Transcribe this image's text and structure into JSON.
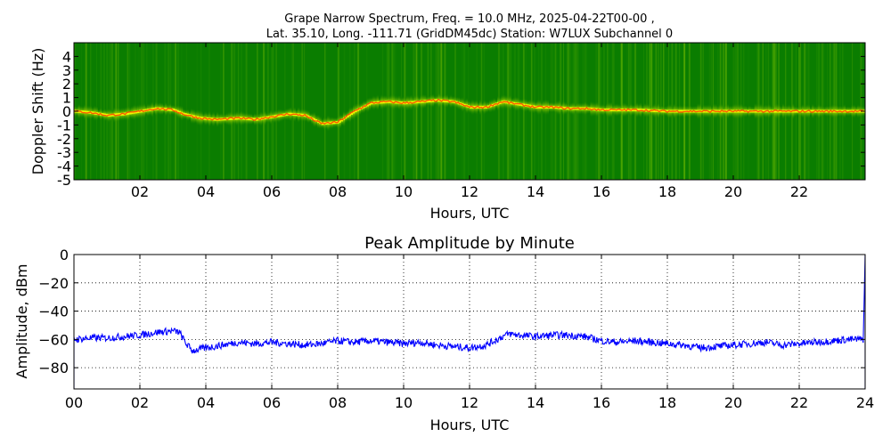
{
  "chart_data": [
    {
      "type": "heatmap",
      "title_line1": "Grape Narrow Spectrum, Freq. = 10.0 MHz, 2025-04-22T00-00 ,",
      "title_line2": "Lat.  35.10, Long. -111.71 (GridDM45dc) Station: W7LUX Subchannel 0",
      "xlabel": "Hours, UTC",
      "ylabel": "Doppler Shift (Hz)",
      "xlim": [
        0,
        24
      ],
      "ylim": [
        -5,
        5
      ],
      "x_ticks": [
        {
          "value": 2,
          "label": "02"
        },
        {
          "value": 4,
          "label": "04"
        },
        {
          "value": 6,
          "label": "06"
        },
        {
          "value": 8,
          "label": "08"
        },
        {
          "value": 10,
          "label": "10"
        },
        {
          "value": 12,
          "label": "12"
        },
        {
          "value": 14,
          "label": "14"
        },
        {
          "value": 16,
          "label": "16"
        },
        {
          "value": 18,
          "label": "18"
        },
        {
          "value": 20,
          "label": "20"
        },
        {
          "value": 22,
          "label": "22"
        }
      ],
      "y_ticks": [
        {
          "value": 4,
          "label": "4"
        },
        {
          "value": 3,
          "label": "3"
        },
        {
          "value": 2,
          "label": "2"
        },
        {
          "value": 1,
          "label": "1"
        },
        {
          "value": 0,
          "label": "0"
        },
        {
          "value": -1,
          "label": "-1"
        },
        {
          "value": -2,
          "label": "-2"
        },
        {
          "value": -3,
          "label": "-3"
        },
        {
          "value": -4,
          "label": "-4"
        },
        {
          "value": -5,
          "label": "-5"
        }
      ],
      "colors": {
        "background": "#0a7d00",
        "mid": "#8fcc00",
        "high": "#ffff00",
        "peak": "#ff2a00"
      },
      "doppler_trace": {
        "hours": [
          0,
          0.5,
          1,
          1.5,
          2,
          2.5,
          3,
          3.3,
          3.8,
          4.3,
          5,
          5.5,
          6,
          6.5,
          7,
          7.5,
          8,
          8.5,
          9,
          9.5,
          10,
          10.5,
          11,
          11.5,
          12,
          12.5,
          13,
          13.5,
          14,
          14.5,
          15,
          15.5,
          16,
          17,
          18,
          19,
          20,
          21,
          22,
          23,
          23.8
        ],
        "hz": [
          0,
          -0.1,
          -0.3,
          -0.2,
          0,
          0.2,
          0.1,
          -0.2,
          -0.5,
          -0.6,
          -0.5,
          -0.6,
          -0.4,
          -0.2,
          -0.3,
          -0.9,
          -0.8,
          0,
          0.6,
          0.7,
          0.6,
          0.7,
          0.8,
          0.7,
          0.3,
          0.3,
          0.7,
          0.5,
          0.3,
          0.3,
          0.2,
          0.2,
          0.1,
          0.1,
          0,
          0,
          0,
          0,
          0,
          0,
          0
        ]
      }
    },
    {
      "type": "line",
      "title": "Peak Amplitude by Minute",
      "xlabel": "Hours, UTC",
      "ylabel": "Amplitude, dBm",
      "xlim": [
        0,
        24
      ],
      "ylim": [
        -95,
        0
      ],
      "grid": true,
      "x_ticks": [
        {
          "value": 0,
          "label": "00"
        },
        {
          "value": 2,
          "label": "02"
        },
        {
          "value": 4,
          "label": "04"
        },
        {
          "value": 6,
          "label": "06"
        },
        {
          "value": 8,
          "label": "08"
        },
        {
          "value": 10,
          "label": "10"
        },
        {
          "value": 12,
          "label": "12"
        },
        {
          "value": 14,
          "label": "14"
        },
        {
          "value": 16,
          "label": "16"
        },
        {
          "value": 18,
          "label": "18"
        },
        {
          "value": 20,
          "label": "20"
        },
        {
          "value": 22,
          "label": "22"
        },
        {
          "value": 24,
          "label": "24"
        }
      ],
      "y_ticks": [
        {
          "value": 0,
          "label": "0"
        },
        {
          "value": -20,
          "label": "−20"
        },
        {
          "value": -40,
          "label": "−40"
        },
        {
          "value": -60,
          "label": "−60"
        },
        {
          "value": -80,
          "label": "−80"
        }
      ],
      "line_color": "#0000ff",
      "series": [
        {
          "x": [
            0,
            0.5,
            1,
            1.5,
            2,
            2.5,
            3,
            3.2,
            3.4,
            3.6,
            4,
            4.5,
            5,
            5.5,
            6,
            6.5,
            7,
            7.5,
            8,
            8.5,
            9,
            9.5,
            10,
            10.5,
            11,
            11.5,
            12,
            12.5,
            13,
            13.2,
            13.5,
            14,
            14.5,
            15,
            15.5,
            16,
            16.5,
            17,
            17.5,
            18,
            18.5,
            19,
            19.5,
            20,
            20.5,
            21,
            21.5,
            22,
            22.5,
            23,
            23.5,
            23.95
          ],
          "y": [
            -60,
            -59,
            -59,
            -58,
            -57,
            -55,
            -54,
            -55,
            -63,
            -68,
            -66,
            -64,
            -62,
            -63,
            -62,
            -63,
            -64,
            -63,
            -61,
            -62,
            -61,
            -62,
            -63,
            -62,
            -64,
            -65,
            -66,
            -64,
            -58,
            -56,
            -57,
            -58,
            -57,
            -57,
            -58,
            -61,
            -62,
            -61,
            -62,
            -63,
            -64,
            -66,
            -65,
            -64,
            -63,
            -62,
            -64,
            -63,
            -62,
            -61,
            -60,
            -60
          ]
        }
      ]
    }
  ]
}
